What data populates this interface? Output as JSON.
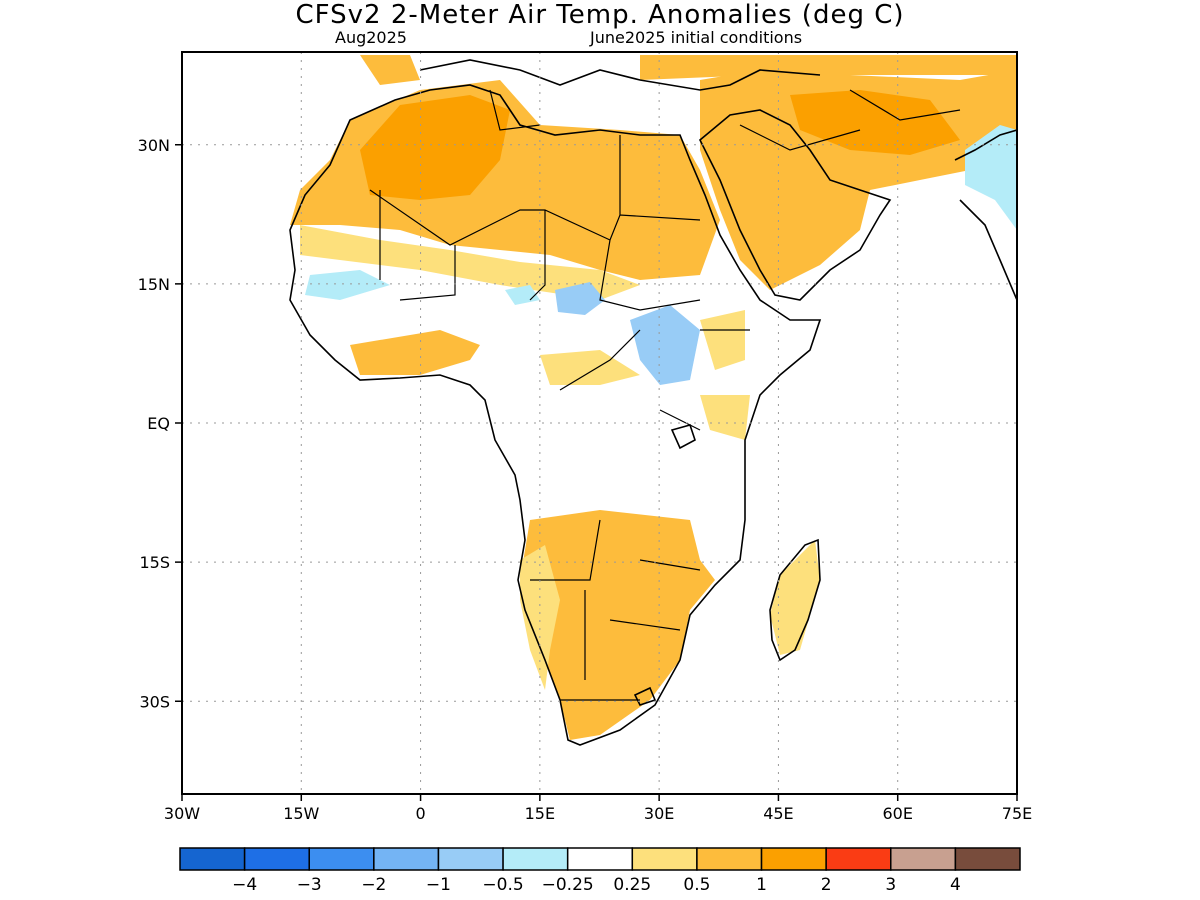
{
  "header": {
    "title": "CFSv2 2-Meter Air Temp. Anomalies (deg C)",
    "valid_month": "Aug2025",
    "initial_conditions": "June2025 initial conditions"
  },
  "map": {
    "lon_range": [
      -30,
      75
    ],
    "lat_range": [
      -40,
      40
    ],
    "lat_ticks": [
      {
        "value": 30,
        "label": "30N"
      },
      {
        "value": 15,
        "label": "15N"
      },
      {
        "value": 0,
        "label": "EQ"
      },
      {
        "value": -15,
        "label": "15S"
      },
      {
        "value": -30,
        "label": "30S"
      }
    ],
    "lon_ticks": [
      {
        "value": -30,
        "label": "30W"
      },
      {
        "value": -15,
        "label": "15W"
      },
      {
        "value": 0,
        "label": "0"
      },
      {
        "value": 15,
        "label": "15E"
      },
      {
        "value": 30,
        "label": "30E"
      },
      {
        "value": 45,
        "label": "45E"
      },
      {
        "value": 60,
        "label": "60E"
      },
      {
        "value": 75,
        "label": "75E"
      }
    ],
    "grid": "dotted"
  },
  "colorbar": {
    "colors": [
      "#1565d0",
      "#1e6fe6",
      "#3c8ef0",
      "#74b4f4",
      "#98ccf6",
      "#b4ecf8",
      "#ffffff",
      "#fde07c",
      "#fdbc3c",
      "#fba000",
      "#fa3c14",
      "#c8a090",
      "#784c3c"
    ],
    "labels": [
      "-4",
      "-3",
      "-2",
      "-1",
      "-0.5",
      "-0.25",
      "0.25",
      "0.5",
      "1",
      "2",
      "3",
      "4"
    ]
  }
}
